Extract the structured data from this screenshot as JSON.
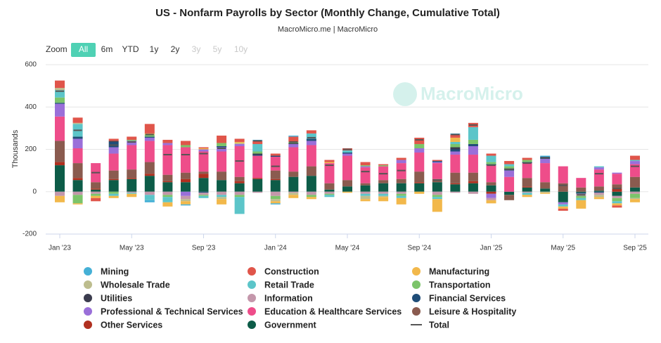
{
  "chart_data": {
    "type": "bar",
    "stacked": true,
    "title": "US - Nonfarm Payrolls by Sector (Monthly Change, Cumulative Total)",
    "subtitle": "MacroMicro.me | MacroMicro",
    "watermark": "MacroMicro",
    "y_label": "Thousands",
    "zoom": {
      "label": "Zoom",
      "buttons": [
        {
          "label": "All",
          "state": "selected"
        },
        {
          "label": "6m",
          "state": "enabled"
        },
        {
          "label": "YTD",
          "state": "enabled"
        },
        {
          "label": "1y",
          "state": "enabled"
        },
        {
          "label": "2y",
          "state": "enabled"
        },
        {
          "label": "3y",
          "state": "disabled"
        },
        {
          "label": "5y",
          "state": "disabled"
        },
        {
          "label": "10y",
          "state": "disabled"
        }
      ]
    },
    "ylim": [
      -200,
      600
    ],
    "yticks": [
      -200,
      0,
      200,
      400,
      600
    ],
    "grid": true,
    "categories": [
      "Jan '23",
      null,
      null,
      null,
      "May '23",
      null,
      null,
      null,
      "Sep '23",
      null,
      null,
      null,
      "Jan '24",
      null,
      null,
      null,
      "May '24",
      null,
      null,
      null,
      "Sep '24",
      null,
      null,
      null,
      "Jan '25",
      null,
      null,
      null,
      "May '25",
      null,
      null,
      null,
      "Sep '25"
    ],
    "series": [
      {
        "name": "Mining",
        "color": "#45b0d6",
        "values": [
          0,
          0,
          0,
          0,
          0,
          -10,
          0,
          -5,
          0,
          0,
          0,
          5,
          -5,
          5,
          0,
          0,
          0,
          0,
          0,
          0,
          0,
          0,
          5,
          0,
          0,
          0,
          0,
          5,
          0,
          0,
          0,
          0,
          0
        ]
      },
      {
        "name": "Construction",
        "color": "#e0554a",
        "values": [
          35,
          25,
          -15,
          10,
          15,
          45,
          15,
          20,
          5,
          35,
          15,
          15,
          10,
          25,
          15,
          10,
          10,
          15,
          5,
          10,
          30,
          5,
          15,
          20,
          10,
          15,
          10,
          0,
          -10,
          0,
          0,
          -10,
          20
        ]
      },
      {
        "name": "Manufacturing",
        "color": "#f2b84b",
        "values": [
          -30,
          -5,
          -10,
          -10,
          -15,
          5,
          -20,
          -15,
          5,
          -25,
          5,
          0,
          -10,
          -15,
          -10,
          5,
          -5,
          -10,
          -20,
          -30,
          -10,
          -60,
          20,
          0,
          -15,
          0,
          -10,
          -5,
          -10,
          -40,
          -10,
          -10,
          -15
        ]
      },
      {
        "name": "Wholesale Trade",
        "color": "#bdbd8e",
        "values": [
          10,
          5,
          0,
          0,
          0,
          0,
          0,
          -10,
          0,
          -10,
          5,
          0,
          -10,
          -10,
          0,
          0,
          0,
          -15,
          -5,
          0,
          0,
          0,
          0,
          0,
          0,
          0,
          0,
          -5,
          0,
          0,
          -10,
          0,
          -5
        ]
      },
      {
        "name": "Retail Trade",
        "color": "#5cc5c9",
        "values": [
          35,
          60,
          0,
          -10,
          -5,
          -25,
          -25,
          0,
          -10,
          -10,
          -80,
          35,
          0,
          0,
          25,
          -10,
          10,
          -10,
          -10,
          -10,
          0,
          -10,
          10,
          60,
          30,
          10,
          -10,
          0,
          -10,
          -10,
          5,
          -10,
          5
        ]
      },
      {
        "name": "Transportation",
        "color": "#7cc46a",
        "values": [
          25,
          -40,
          -10,
          -10,
          5,
          10,
          -10,
          10,
          -5,
          15,
          -10,
          10,
          -15,
          5,
          -10,
          -5,
          0,
          5,
          5,
          -10,
          20,
          -10,
          15,
          20,
          10,
          10,
          10,
          0,
          0,
          -10,
          0,
          -15,
          -20
        ]
      },
      {
        "name": "Utilities",
        "color": "#3b3c4e",
        "values": [
          0,
          0,
          0,
          5,
          0,
          0,
          0,
          0,
          0,
          0,
          0,
          5,
          0,
          5,
          0,
          0,
          0,
          0,
          0,
          0,
          0,
          0,
          10,
          0,
          0,
          5,
          0,
          0,
          0,
          0,
          0,
          0,
          0
        ]
      },
      {
        "name": "Information",
        "color": "#c497ab",
        "values": [
          -20,
          -15,
          -10,
          0,
          -5,
          -15,
          -15,
          -15,
          -10,
          -15,
          -15,
          -5,
          -20,
          -5,
          -15,
          -10,
          0,
          -10,
          -10,
          -10,
          0,
          -15,
          -5,
          -10,
          -10,
          0,
          -5,
          0,
          0,
          -10,
          -10,
          -10,
          -10
        ]
      },
      {
        "name": "Financial Services",
        "color": "#1f4d78",
        "values": [
          5,
          10,
          0,
          25,
          0,
          5,
          0,
          0,
          -5,
          5,
          0,
          5,
          5,
          0,
          10,
          0,
          5,
          0,
          0,
          0,
          0,
          5,
          10,
          10,
          5,
          5,
          5,
          10,
          0,
          -5,
          -5,
          0,
          0
        ]
      },
      {
        "name": "Professional & Technical Services",
        "color": "#9a6fd9",
        "values": [
          60,
          45,
          0,
          30,
          20,
          15,
          10,
          -20,
          10,
          20,
          10,
          0,
          0,
          15,
          20,
          0,
          10,
          5,
          0,
          15,
          20,
          5,
          15,
          40,
          -20,
          30,
          0,
          20,
          -10,
          0,
          10,
          5,
          15
        ]
      },
      {
        "name": "Education & Healthcare Services",
        "color": "#ee4d8a",
        "values": [
          115,
          70,
          90,
          80,
          115,
          100,
          140,
          120,
          95,
          95,
          145,
          105,
          65,
          115,
          100,
          95,
          115,
          75,
          65,
          75,
          90,
          75,
          85,
          85,
          80,
          70,
          70,
          90,
          80,
          45,
          80,
          50,
          60
        ]
      },
      {
        "name": "Leisure & Hospitality",
        "color": "#8a5b4f",
        "values": [
          100,
          70,
          30,
          40,
          40,
          55,
          30,
          30,
          10,
          40,
          20,
          0,
          40,
          25,
          45,
          30,
          30,
          10,
          15,
          20,
          50,
          15,
          50,
          40,
          15,
          -25,
          40,
          30,
          40,
          20,
          20,
          20,
          50
        ]
      },
      {
        "name": "Other Services",
        "color": "#b03020",
        "values": [
          15,
          10,
          5,
          5,
          5,
          10,
          5,
          15,
          20,
          0,
          10,
          5,
          5,
          0,
          0,
          0,
          0,
          0,
          0,
          0,
          5,
          0,
          5,
          10,
          -10,
          0,
          5,
          0,
          0,
          0,
          0,
          15,
          0
        ]
      },
      {
        "name": "Government",
        "color": "#0d5c48",
        "values": [
          125,
          55,
          10,
          55,
          60,
          75,
          45,
          45,
          65,
          55,
          40,
          60,
          55,
          70,
          75,
          10,
          25,
          30,
          40,
          40,
          40,
          45,
          35,
          40,
          30,
          -15,
          20,
          15,
          -50,
          -5,
          5,
          -20,
          20
        ]
      },
      {
        "name": "Total",
        "color": "#555555",
        "type": "line",
        "values": [
          475,
          290,
          90,
          220,
          235,
          270,
          175,
          175,
          180,
          205,
          145,
          240,
          120,
          235,
          255,
          125,
          200,
          95,
          85,
          100,
          245,
          55,
          270,
          315,
          125,
          105,
          135,
          160,
          30,
          -15,
          85,
          15,
          120
        ]
      }
    ]
  }
}
